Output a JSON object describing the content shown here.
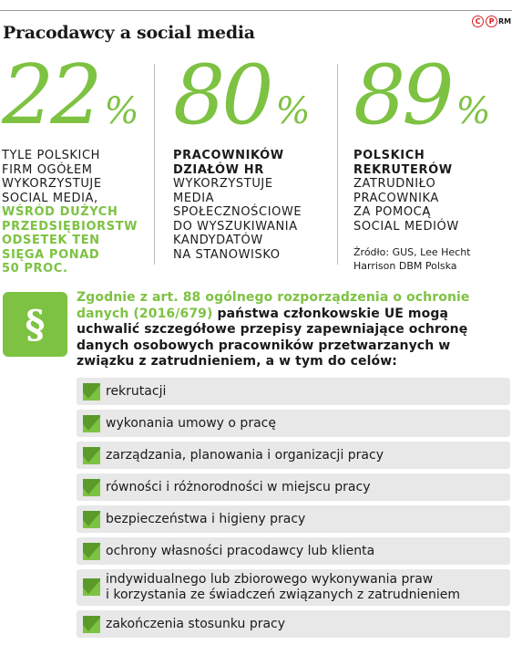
{
  "title": "Pracodawcy a social media",
  "copyright": {
    "c": "C",
    "p": "P",
    "rm": "RM"
  },
  "stats": [
    {
      "number": "22",
      "percent": "%",
      "lines_normal": [
        "TYLE POLSKICH",
        "FIRM OGÓŁEM",
        "WYKORZYSTUJE",
        "SOCIAL MEDIA,"
      ],
      "lines_green": [
        "WŚRÓD DUŻYCH",
        "PRZEDSIĘBIORSTW",
        "ODSETEK TEN",
        "SIĘGA PONAD",
        "50 PROC."
      ]
    },
    {
      "number": "80",
      "percent": "%",
      "lines_bold": [
        "PRACOWNIKÓW",
        "DZIAŁÓW HR"
      ],
      "lines_normal": [
        "WYKORZYSTUJE",
        "MEDIA",
        "SPOŁECZNOŚCIOWE",
        "DO WYSZUKIWANIA",
        "KANDYDATÓW",
        "NA STANOWISKO"
      ]
    },
    {
      "number": "89",
      "percent": "%",
      "lines_bold": [
        "POLSKICH",
        "REKRUTERÓW"
      ],
      "lines_normal": [
        "ZATRUDNIŁO",
        "PRACOWNIKA",
        "ZA POMOCĄ",
        "SOCIAL MEDIÓW"
      ]
    }
  ],
  "source": [
    "Źródło: GUS, Lee Hecht",
    "Harrison DBM Polska"
  ],
  "paragraph_symbol": "§",
  "intro": {
    "green_part": "Zgodnie z art. 88 ogólnego rozporządzenia o ochronie danych (2016/679)",
    "rest": " państwa członkowskie UE mogą uchwalić szczegółowe przepisy zapewniające ochronę danych osobowych pracowników przetwarzanych w związku z zatrudnieniem, a w tym do celów:"
  },
  "purposes": [
    {
      "lines": [
        "rekrutacji"
      ]
    },
    {
      "lines": [
        "wykonania umowy o pracę"
      ]
    },
    {
      "lines": [
        "zarządzania, planowania i organizacji pracy"
      ]
    },
    {
      "lines": [
        "równości i różnorodności w miejscu pracy"
      ]
    },
    {
      "lines": [
        "bezpieczeństwa i higieny pracy"
      ]
    },
    {
      "lines": [
        "ochrony własności pracodawcy lub klienta"
      ]
    },
    {
      "lines": [
        "indywidualnego lub zbiorowego wykonywania praw",
        "i korzystania ze świadczeń związanych z zatrudnieniem"
      ]
    },
    {
      "lines": [
        "zakończenia stosunku pracy"
      ]
    }
  ],
  "colors": {
    "accent": "#7dc242",
    "text": "#1a1a1a",
    "list_bg": "#e8e8e8",
    "copyright": "#d92121"
  }
}
